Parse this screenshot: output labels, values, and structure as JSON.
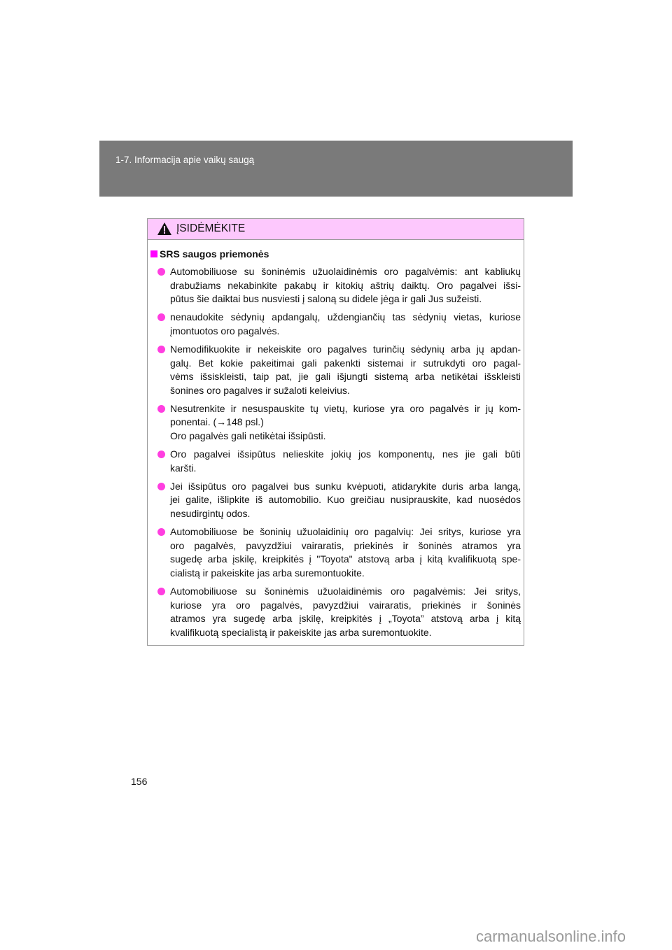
{
  "header": {
    "section": "1-7. Informacija apie vaikų saugą"
  },
  "caution": {
    "icon": "warning-triangle-icon",
    "title": "ĮSIDĖMĖKITE",
    "section_title": "SRS saugos priemonės",
    "colors": {
      "header_bg": "#fdc8fd",
      "bullet": "#ff3ee0",
      "square": "#ff00ff"
    },
    "items": [
      {
        "lines": [
          "Automobiliuose su šoninėmis užuolaidinėmis oro pagalvėmis: ant kabliukų",
          "drabužiams nekabinkite pakabų ir kitokių aštrių daiktų. Oro pagalvei išsi-",
          "pūtus šie daiktai bus nusviesti į saloną su didele jėga ir gali Jus sužeisti."
        ]
      },
      {
        "lines": [
          "nenaudokite sėdynių apdangalų, uždengiančių tas sėdynių vietas, kuriose",
          "įmontuotos oro pagalvės."
        ]
      },
      {
        "lines": [
          "Nemodifikuokite ir nekeiskite oro pagalves turinčių sėdynių arba jų apdan-",
          "galų. Bet kokie pakeitimai gali pakenkti sistemai ir sutrukdyti oro pagal-",
          "vėms išsiskleisti, taip pat, jie gali išjungti sistemą arba netikėtai išskleisti",
          "šonines oro pagalves ir sužaloti keleivius."
        ]
      },
      {
        "lines": [
          "Nesutrenkite ir nesuspauskite tų vietų, kuriose yra oro pagalvės ir jų kom-",
          "ponentai. (→148 psl.)",
          "Oro pagalvės gali netikėtai išsipūsti."
        ]
      },
      {
        "lines": [
          "Oro pagalvei išsipūtus nelieskite jokių jos komponentų, nes jie gali būti",
          "karšti."
        ]
      },
      {
        "lines": [
          "Jei išsipūtus oro pagalvei bus sunku kvėpuoti, atidarykite duris arba langą,",
          "jei galite, išlipkite iš automobilio. Kuo greičiau nusiprauskite, kad nuosėdos",
          "nesudirgintų odos."
        ]
      },
      {
        "lines": [
          "Automobiliuose be šoninių užuolaidinių oro pagalvių: Jei sritys, kuriose yra",
          "oro pagalvės, pavyzdžiui vairaratis, priekinės ir šoninės atramos yra",
          "sugedę arba įskilę, kreipkitės į \"Toyota\" atstovą arba į kitą kvalifikuotą spe-",
          "cialistą ir pakeiskite jas arba suremontuokite."
        ]
      },
      {
        "lines": [
          "Automobiliuose su šoninėmis užuolaidinėmis oro pagalvėmis: Jei sritys,",
          "kuriose yra oro pagalvės, pavyzdžiui vairaratis, priekinės ir šoninės",
          "atramos yra sugedę arba įskilę, kreipkitės į „Toyota” atstovą arba į kitą",
          "kvalifikuotą specialistą ir pakeiskite jas arba suremontuokite."
        ]
      }
    ]
  },
  "page_number": "156",
  "watermark": "carmanualsonline.info"
}
